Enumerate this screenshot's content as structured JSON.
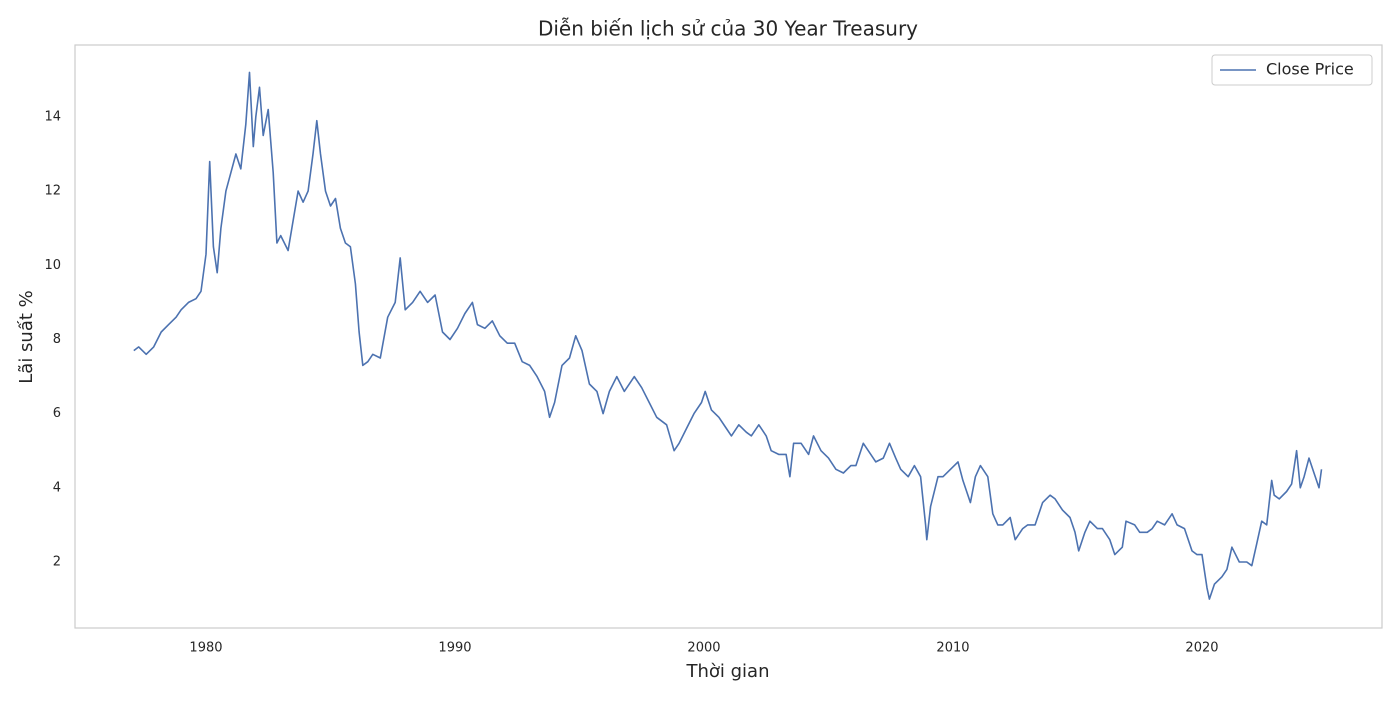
{
  "chart_data": {
    "type": "line",
    "title": "Diễn biến lịch sử của 30 Year Treasury",
    "xlabel": "Thời gian",
    "ylabel": "Lãi suất %",
    "x": [
      1977.1,
      1977.3,
      1977.6,
      1977.9,
      1978.2,
      1978.5,
      1978.8,
      1979.0,
      1979.3,
      1979.6,
      1979.8,
      1980.0,
      1980.15,
      1980.3,
      1980.45,
      1980.6,
      1980.8,
      1981.0,
      1981.2,
      1981.4,
      1981.6,
      1981.75,
      1981.9,
      1982.0,
      1982.15,
      1982.3,
      1982.5,
      1982.7,
      1982.85,
      1983.0,
      1983.3,
      1983.5,
      1983.7,
      1983.9,
      1984.1,
      1984.3,
      1984.45,
      1984.6,
      1984.8,
      1985.0,
      1985.2,
      1985.4,
      1985.6,
      1985.8,
      1986.0,
      1986.15,
      1986.3,
      1986.5,
      1986.7,
      1987.0,
      1987.3,
      1987.6,
      1987.8,
      1988.0,
      1988.3,
      1988.6,
      1988.9,
      1989.2,
      1989.5,
      1989.8,
      1990.1,
      1990.4,
      1990.7,
      1990.9,
      1991.2,
      1991.5,
      1991.8,
      1992.1,
      1992.4,
      1992.7,
      1993.0,
      1993.3,
      1993.6,
      1993.8,
      1994.0,
      1994.3,
      1994.6,
      1994.85,
      1995.1,
      1995.4,
      1995.7,
      1995.95,
      1996.2,
      1996.5,
      1996.8,
      1997.2,
      1997.5,
      1997.8,
      1998.1,
      1998.5,
      1998.8,
      1999.0,
      1999.3,
      1999.6,
      1999.9,
      2000.05,
      2000.3,
      2000.6,
      2000.9,
      2001.1,
      2001.4,
      2001.7,
      2001.9,
      2002.2,
      2002.5,
      2002.7,
      2003.0,
      2003.3,
      2003.45,
      2003.6,
      2003.9,
      2004.2,
      2004.4,
      2004.7,
      2005.0,
      2005.3,
      2005.6,
      2005.9,
      2006.1,
      2006.4,
      2006.7,
      2006.9,
      2007.2,
      2007.45,
      2007.7,
      2007.9,
      2008.2,
      2008.45,
      2008.7,
      2008.9,
      2008.95,
      2009.1,
      2009.4,
      2009.6,
      2009.9,
      2010.2,
      2010.4,
      2010.7,
      2010.9,
      2011.1,
      2011.4,
      2011.6,
      2011.8,
      2012.0,
      2012.3,
      2012.5,
      2012.8,
      2013.0,
      2013.3,
      2013.6,
      2013.9,
      2014.1,
      2014.4,
      2014.7,
      2014.9,
      2015.05,
      2015.3,
      2015.5,
      2015.8,
      2016.0,
      2016.3,
      2016.5,
      2016.8,
      2016.95,
      2017.3,
      2017.5,
      2017.8,
      2018.0,
      2018.2,
      2018.5,
      2018.8,
      2019.0,
      2019.3,
      2019.6,
      2019.8,
      2020.0,
      2020.2,
      2020.3,
      2020.5,
      2020.8,
      2021.0,
      2021.2,
      2021.5,
      2021.8,
      2022.0,
      2022.2,
      2022.4,
      2022.6,
      2022.8,
      2022.9,
      2023.1,
      2023.4,
      2023.6,
      2023.8,
      2023.95,
      2024.1,
      2024.3,
      2024.5,
      2024.7,
      2024.8
    ],
    "series": [
      {
        "name": "Close Price",
        "color": "#4c72b0",
        "values": [
          7.7,
          7.8,
          7.6,
          7.8,
          8.2,
          8.4,
          8.6,
          8.8,
          9.0,
          9.1,
          9.3,
          10.3,
          12.8,
          10.5,
          9.8,
          11.0,
          12.0,
          12.5,
          13.0,
          12.6,
          13.8,
          15.2,
          13.2,
          14.0,
          14.8,
          13.5,
          14.2,
          12.5,
          10.6,
          10.8,
          10.4,
          11.2,
          12.0,
          11.7,
          12.0,
          13.0,
          13.9,
          13.0,
          12.0,
          11.6,
          11.8,
          11.0,
          10.6,
          10.5,
          9.5,
          8.2,
          7.3,
          7.4,
          7.6,
          7.5,
          8.6,
          9.0,
          10.2,
          8.8,
          9.0,
          9.3,
          9.0,
          9.2,
          8.2,
          8.0,
          8.3,
          8.7,
          9.0,
          8.4,
          8.3,
          8.5,
          8.1,
          7.9,
          7.9,
          7.4,
          7.3,
          7.0,
          6.6,
          5.9,
          6.3,
          7.3,
          7.5,
          8.1,
          7.7,
          6.8,
          6.6,
          6.0,
          6.6,
          7.0,
          6.6,
          7.0,
          6.7,
          6.3,
          5.9,
          5.7,
          5.0,
          5.2,
          5.6,
          6.0,
          6.3,
          6.6,
          6.1,
          5.9,
          5.6,
          5.4,
          5.7,
          5.5,
          5.4,
          5.7,
          5.4,
          5.0,
          4.9,
          4.9,
          4.3,
          5.2,
          5.2,
          4.9,
          5.4,
          5.0,
          4.8,
          4.5,
          4.4,
          4.6,
          4.6,
          5.2,
          4.9,
          4.7,
          4.8,
          5.2,
          4.8,
          4.5,
          4.3,
          4.6,
          4.3,
          3.0,
          2.6,
          3.5,
          4.3,
          4.3,
          4.5,
          4.7,
          4.2,
          3.6,
          4.3,
          4.6,
          4.3,
          3.3,
          3.0,
          3.0,
          3.2,
          2.6,
          2.9,
          3.0,
          3.0,
          3.6,
          3.8,
          3.7,
          3.4,
          3.2,
          2.8,
          2.3,
          2.8,
          3.1,
          2.9,
          2.9,
          2.6,
          2.2,
          2.4,
          3.1,
          3.0,
          2.8,
          2.8,
          2.9,
          3.1,
          3.0,
          3.3,
          3.0,
          2.9,
          2.3,
          2.2,
          2.2,
          1.3,
          1.0,
          1.4,
          1.6,
          1.8,
          2.4,
          2.0,
          2.0,
          1.9,
          2.5,
          3.1,
          3.0,
          4.2,
          3.8,
          3.7,
          3.9,
          4.1,
          5.0,
          4.0,
          4.3,
          4.8,
          4.4,
          4.0,
          4.5
        ]
      }
    ],
    "xlim": [
      1974.74,
      2027.23
    ],
    "ylim": [
      0.22,
      15.94
    ],
    "xticks": [
      1980,
      1990,
      2000,
      2010,
      2020
    ],
    "yticks": [
      2,
      4,
      6,
      8,
      10,
      12,
      14
    ],
    "grid": false,
    "legend": "upper right"
  }
}
